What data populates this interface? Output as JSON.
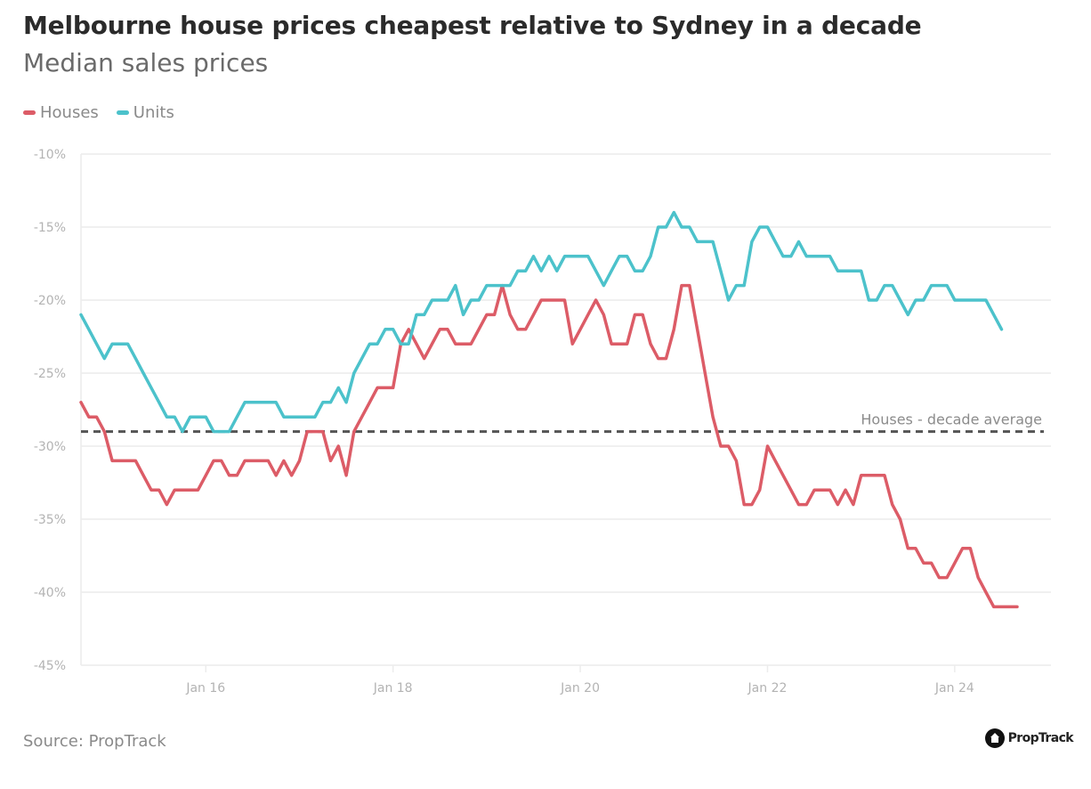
{
  "title": "Melbourne house prices cheapest relative to Sydney in a decade",
  "subtitle": "Median sales prices",
  "source": "Source: PropTrack",
  "logo_text": "PropTrack",
  "colors": {
    "houses": "#dc5c67",
    "units": "#4cc2cb",
    "reference": "#555555",
    "grid": "#ececec"
  },
  "chart_data": {
    "type": "line",
    "title": "Melbourne house prices cheapest relative to Sydney in a decade",
    "subtitle": "Median sales prices",
    "xlabel": "",
    "ylabel": "",
    "x_start": "2014-09",
    "x_end": "2024-09",
    "x_unit": "month",
    "x_ticks": [
      {
        "label": "Jan 16",
        "year": 2016
      },
      {
        "label": "Jan 18",
        "year": 2018
      },
      {
        "label": "Jan 20",
        "year": 2020
      },
      {
        "label": "Jan 22",
        "year": 2022
      },
      {
        "label": "Jan 24",
        "year": 2024
      }
    ],
    "ylim": [
      -45,
      -10
    ],
    "y_ticks": [
      {
        "value": -10,
        "label": "-10%"
      },
      {
        "value": -15,
        "label": "-15%"
      },
      {
        "value": -20,
        "label": "-20%"
      },
      {
        "value": -25,
        "label": "-25%"
      },
      {
        "value": -30,
        "label": "-30%"
      },
      {
        "value": -35,
        "label": "-35%"
      },
      {
        "value": -40,
        "label": "-40%"
      },
      {
        "value": -45,
        "label": "-45%"
      }
    ],
    "grid": true,
    "legend_position": "top-left",
    "series": [
      {
        "name": "Houses",
        "values": [
          -27,
          -28,
          -28,
          -29,
          -31,
          -31,
          -31,
          -31,
          -32,
          -33,
          -33,
          -34,
          -33,
          -33,
          -33,
          -33,
          -32,
          -31,
          -31,
          -32,
          -32,
          -31,
          -31,
          -31,
          -31,
          -32,
          -31,
          -32,
          -31,
          -29,
          -29,
          -29,
          -31,
          -30,
          -32,
          -29,
          -28,
          -27,
          -26,
          -26,
          -26,
          -23,
          -22,
          -23,
          -24,
          -23,
          -22,
          -22,
          -23,
          -23,
          -23,
          -22,
          -21,
          -21,
          -19,
          -21,
          -22,
          -22,
          -21,
          -20,
          -20,
          -20,
          -20,
          -23,
          -22,
          -21,
          -20,
          -21,
          -23,
          -23,
          -23,
          -21,
          -21,
          -23,
          -24,
          -24,
          -22,
          -19,
          -19,
          -22,
          -25,
          -28,
          -30,
          -30,
          -31,
          -34,
          -34,
          -33,
          -30,
          -31,
          -32,
          -33,
          -34,
          -34,
          -33,
          -33,
          -33,
          -34,
          -33,
          -34,
          -32,
          -32,
          -32,
          -32,
          -34,
          -35,
          -37,
          -37,
          -38,
          -38,
          -39,
          -39,
          -38,
          -37,
          -37,
          -39,
          -40,
          -41,
          -41,
          -41,
          -41
        ],
        "color": "#dc5c67"
      },
      {
        "name": "Units",
        "values": [
          -21,
          -22,
          -23,
          -24,
          -23,
          -23,
          -23,
          -24,
          -25,
          -26,
          -27,
          -28,
          -28,
          -29,
          -28,
          -28,
          -28,
          -29,
          -29,
          -29,
          -28,
          -27,
          -27,
          -27,
          -27,
          -27,
          -28,
          -28,
          -28,
          -28,
          -28,
          -27,
          -27,
          -26,
          -27,
          -25,
          -24,
          -23,
          -23,
          -22,
          -22,
          -23,
          -23,
          -21,
          -21,
          -20,
          -20,
          -20,
          -19,
          -21,
          -20,
          -20,
          -19,
          -19,
          -19,
          -19,
          -18,
          -18,
          -17,
          -18,
          -17,
          -18,
          -17,
          -17,
          -17,
          -17,
          -18,
          -19,
          -18,
          -17,
          -17,
          -18,
          -18,
          -17,
          -15,
          -15,
          -14,
          -15,
          -15,
          -16,
          -16,
          -16,
          -18,
          -20,
          -19,
          -19,
          -16,
          -15,
          -15,
          -16,
          -17,
          -17,
          -16,
          -17,
          -17,
          -17,
          -17,
          -18,
          -18,
          -18,
          -18,
          -20,
          -20,
          -19,
          -19,
          -20,
          -21,
          -20,
          -20,
          -19,
          -19,
          -19,
          -20,
          -20,
          -20,
          -20,
          -20,
          -21,
          -22
        ],
        "color": "#4cc2cb"
      }
    ],
    "reference_lines": [
      {
        "label": "Houses - decade average",
        "value": -29,
        "style": "dashed"
      }
    ]
  }
}
